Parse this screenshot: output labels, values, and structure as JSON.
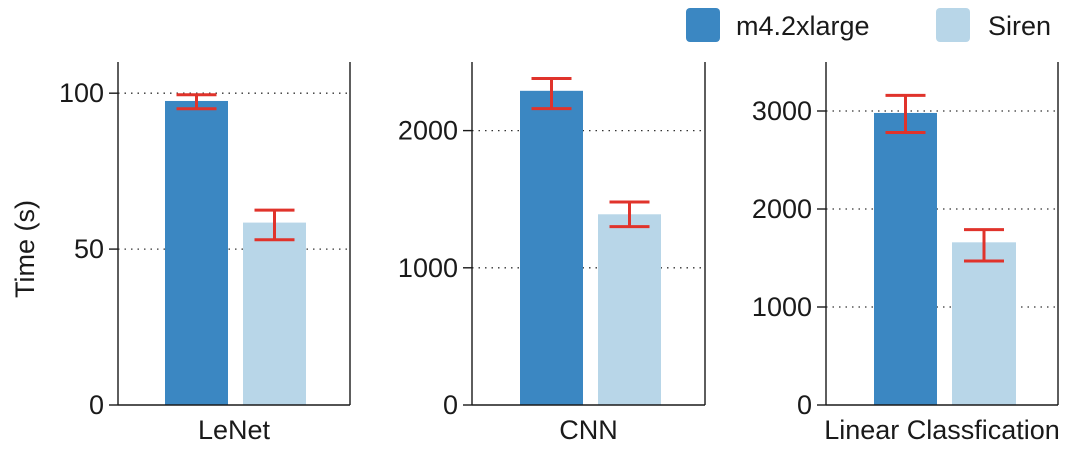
{
  "legend": {
    "position": "top-right",
    "items": [
      {
        "label": "m4.2xlarge",
        "color": "#3b87c2"
      },
      {
        "label": "Siren",
        "color": "#b8d6e8"
      }
    ]
  },
  "shared_ylabel": "Time (s)",
  "colors": {
    "series_1": "#3b87c2",
    "series_2": "#b8d6e8",
    "error_bar": "#e0332b",
    "grid": "#333333",
    "axis": "#1a1a1a"
  },
  "chart_data": [
    {
      "type": "bar",
      "title": "",
      "xlabel": "LeNet",
      "ylabel": "Time (s)",
      "categories": [
        "LeNet"
      ],
      "ylim": [
        0,
        110
      ],
      "yticks": [
        0,
        50,
        100
      ],
      "grid": "horizontal dotted",
      "series": [
        {
          "name": "m4.2xlarge",
          "values": [
            97.5
          ],
          "error": [
            [
              95,
              99.5
            ]
          ]
        },
        {
          "name": "Siren",
          "values": [
            58.5
          ],
          "error": [
            [
              53,
              62.5
            ]
          ]
        }
      ]
    },
    {
      "type": "bar",
      "title": "",
      "xlabel": "CNN",
      "ylabel": "",
      "categories": [
        "CNN"
      ],
      "ylim": [
        0,
        2500
      ],
      "yticks": [
        0,
        1000,
        2000
      ],
      "grid": "horizontal dotted",
      "series": [
        {
          "name": "m4.2xlarge",
          "values": [
            2290
          ],
          "error": [
            [
              2160,
              2380
            ]
          ]
        },
        {
          "name": "Siren",
          "values": [
            1390
          ],
          "error": [
            [
              1300,
              1480
            ]
          ]
        }
      ]
    },
    {
      "type": "bar",
      "title": "",
      "xlabel": "Linear Classfication",
      "ylabel": "",
      "categories": [
        "Linear Classfication"
      ],
      "ylim": [
        0,
        3500
      ],
      "yticks": [
        0,
        1000,
        2000,
        3000
      ],
      "grid": "horizontal dotted",
      "series": [
        {
          "name": "m4.2xlarge",
          "values": [
            2980
          ],
          "error": [
            [
              2780,
              3160
            ]
          ]
        },
        {
          "name": "Siren",
          "values": [
            1660
          ],
          "error": [
            [
              1470,
              1790
            ]
          ]
        }
      ]
    }
  ]
}
